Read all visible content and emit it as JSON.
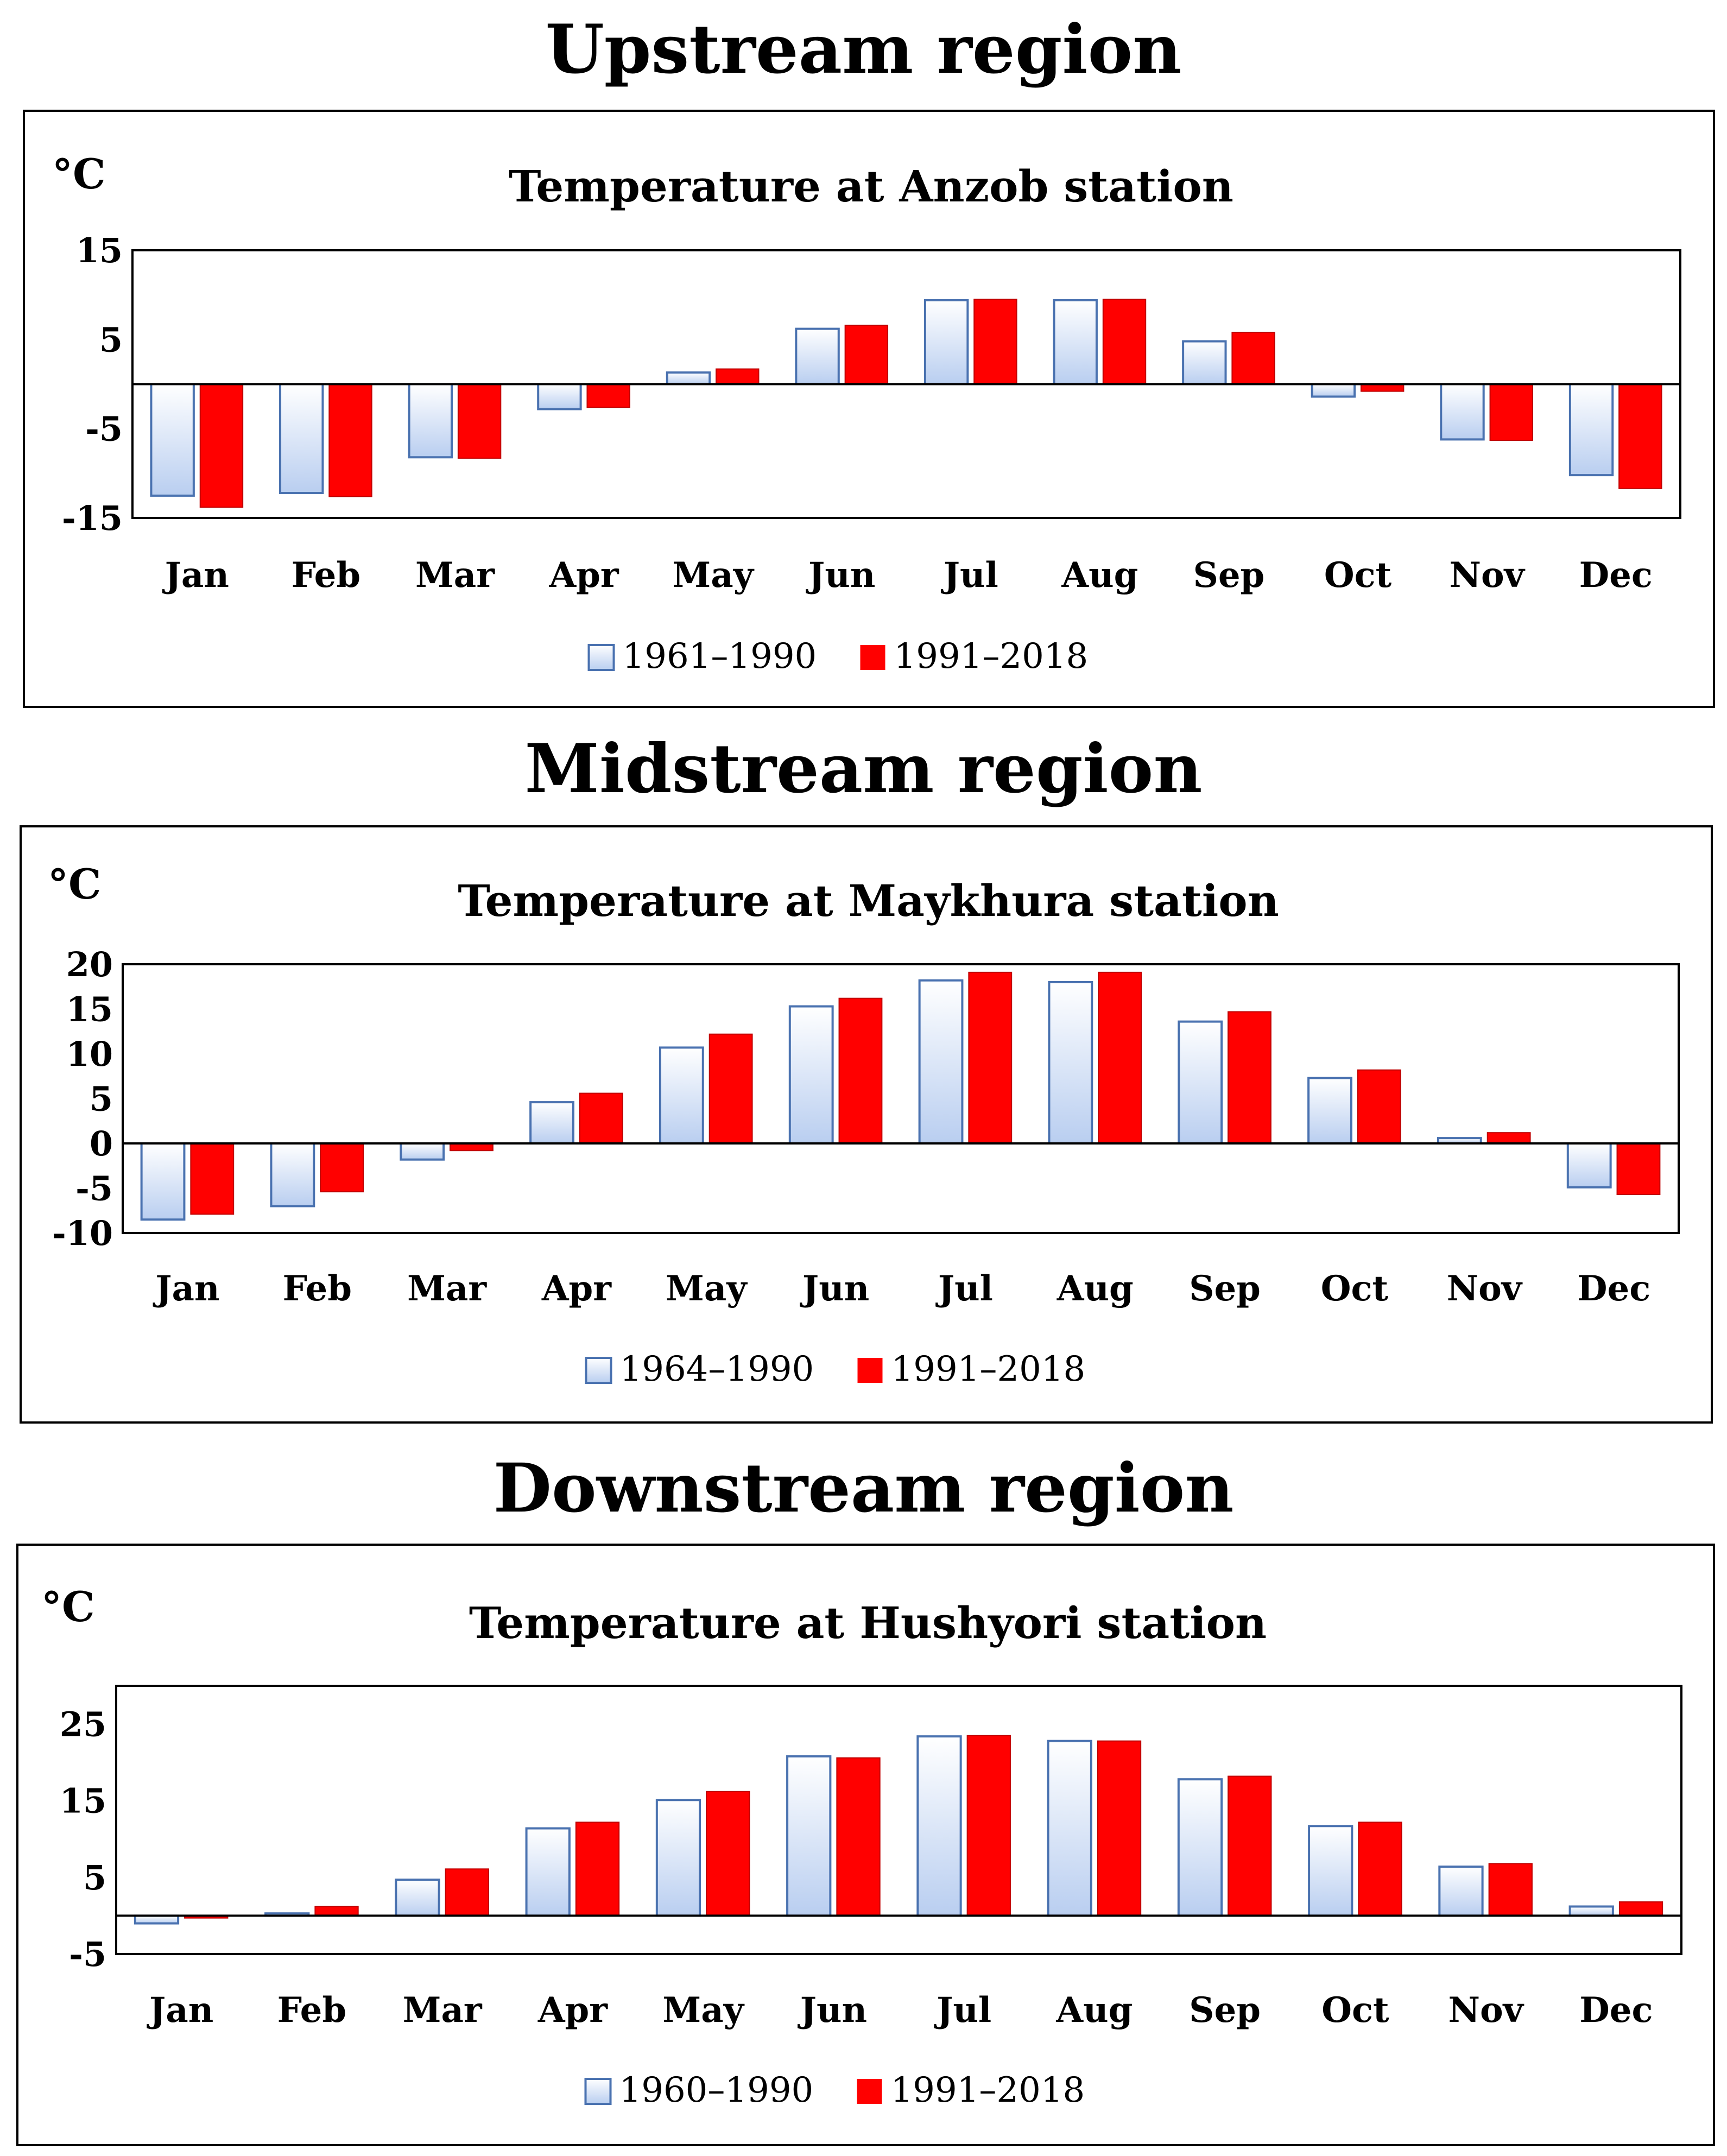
{
  "colors": {
    "period1_fill_top": "#ffffff",
    "period1_fill_bottom": "#b9cef0",
    "period1_stroke": "#4a72b0",
    "period2_fill": "#ff0000",
    "frame": "#000000"
  },
  "chart_data": [
    {
      "type": "bar",
      "region_title": "Upstream region",
      "title": "Temperature at Anzob station",
      "ylabel": "°C",
      "ylim": [
        -15,
        15
      ],
      "yticks": [
        15,
        5,
        -5,
        -15
      ],
      "grid": false,
      "legend_position": "bottom",
      "categories": [
        "Jan",
        "Feb",
        "Mar",
        "Apr",
        "May",
        "Jun",
        "Jul",
        "Aug",
        "Sep",
        "Oct",
        "Nov",
        "Dec"
      ],
      "series": [
        {
          "name": "1961–1990",
          "values": [
            -12.5,
            -12.2,
            -8.2,
            -2.8,
            1.3,
            6.2,
            9.4,
            9.4,
            4.8,
            -1.4,
            -6.2,
            -10.2
          ]
        },
        {
          "name": "1991–2018",
          "values": [
            -13.8,
            -12.6,
            -8.3,
            -2.6,
            1.7,
            6.6,
            9.5,
            9.5,
            5.8,
            -0.8,
            -6.3,
            -11.7
          ]
        }
      ]
    },
    {
      "type": "bar",
      "region_title": "Midstream region",
      "title": "Temperature at Maykhura station",
      "ylabel": "°C",
      "ylim": [
        -10,
        20
      ],
      "yticks": [
        20,
        15,
        10,
        5,
        0,
        -5,
        -10
      ],
      "grid": false,
      "legend_position": "bottom",
      "categories": [
        "Jan",
        "Feb",
        "Mar",
        "Apr",
        "May",
        "Jun",
        "Jul",
        "Aug",
        "Sep",
        "Oct",
        "Nov",
        "Dec"
      ],
      "series": [
        {
          "name": "1964–1990",
          "values": [
            -8.5,
            -7.0,
            -1.8,
            4.6,
            10.7,
            15.3,
            18.2,
            18.0,
            13.6,
            7.3,
            0.6,
            -4.9
          ]
        },
        {
          "name": "1991–2018",
          "values": [
            -7.9,
            -5.4,
            -0.8,
            5.6,
            12.2,
            16.2,
            19.1,
            19.1,
            14.7,
            8.2,
            1.2,
            -5.7
          ]
        }
      ]
    },
    {
      "type": "bar",
      "region_title": "Downstream region",
      "title": "Temperature at Hushyori station",
      "ylabel": "°C",
      "ylim": [
        -5,
        30
      ],
      "yticks": [
        25,
        15,
        5,
        -5
      ],
      "grid": false,
      "legend_position": "bottom",
      "categories": [
        "Jan",
        "Feb",
        "Mar",
        "Apr",
        "May",
        "Jun",
        "Jul",
        "Aug",
        "Sep",
        "Oct",
        "Nov",
        "Dec"
      ],
      "series": [
        {
          "name": "1960–1990",
          "values": [
            -1.0,
            0.3,
            4.7,
            11.4,
            15.1,
            20.8,
            23.4,
            22.8,
            17.8,
            11.7,
            6.4,
            1.2
          ]
        },
        {
          "name": "1991–2018",
          "values": [
            -0.3,
            1.2,
            6.1,
            12.2,
            16.2,
            20.6,
            23.5,
            22.8,
            18.2,
            12.2,
            6.8,
            1.8
          ]
        }
      ]
    }
  ]
}
